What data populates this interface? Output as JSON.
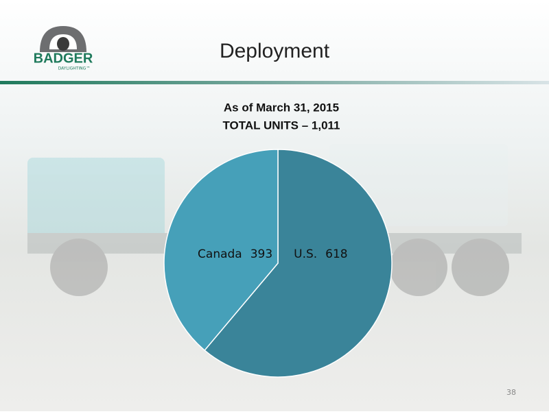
{
  "header": {
    "title": "Deployment",
    "logo": {
      "name": "BADGER",
      "tagline": "DAYLIGHTING™"
    }
  },
  "chart_data": {
    "type": "pie",
    "title": "As of March 31, 2015",
    "subtitle": "TOTAL UNITS – 1,011",
    "categories": [
      "U.S.",
      "Canada"
    ],
    "values": [
      618,
      393
    ],
    "colors": [
      "#3a8499",
      "#46a0b9"
    ]
  },
  "footer": {
    "page_number": "38"
  }
}
